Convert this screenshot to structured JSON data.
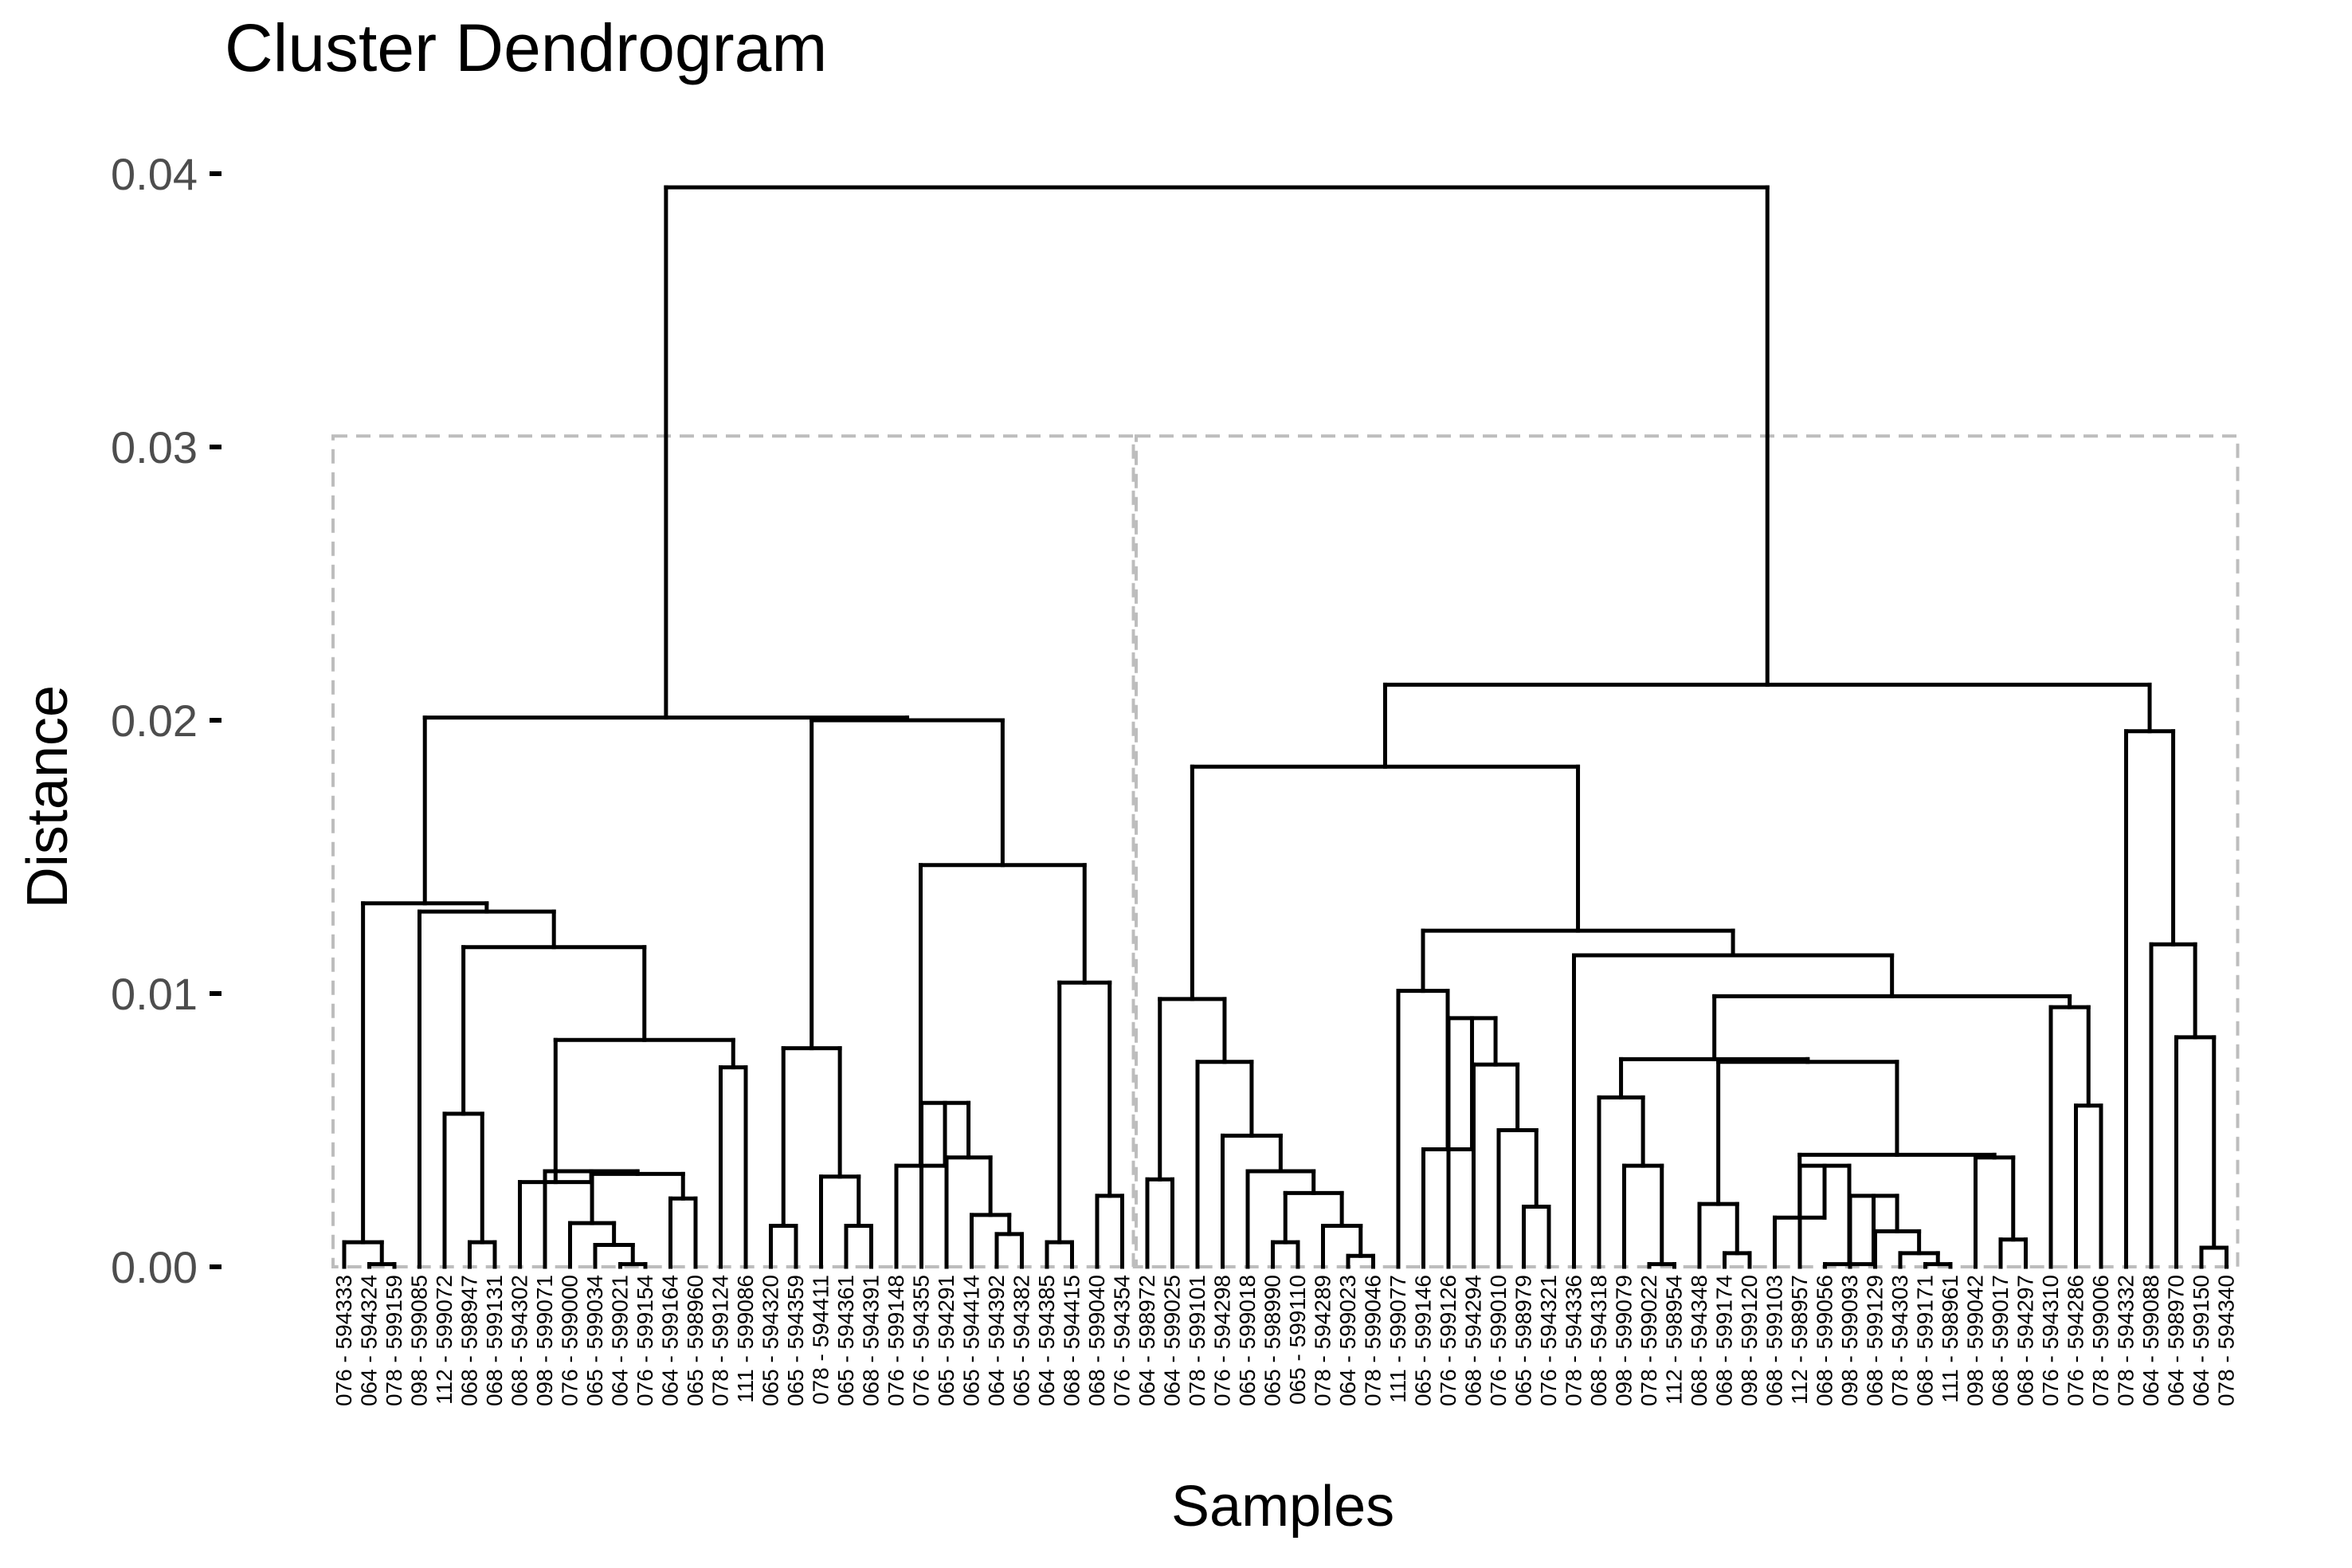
{
  "chart_data": {
    "type": "dendrogram",
    "title": "Cluster Dendrogram",
    "xlabel": "Samples",
    "ylabel": "Distance",
    "ylim": [
      0,
      0.04
    ],
    "y_ticks": [
      "0.00",
      "0.01",
      "0.02",
      "0.03",
      "0.04"
    ],
    "grid": false,
    "cluster_boxes": 2,
    "leaves": [
      "076 - 594333",
      "064 - 594324",
      "078 - 599159",
      "098 - 599085",
      "112 - 599072",
      "068 - 598947",
      "068 - 599131",
      "068 - 594302",
      "098 - 599071",
      "076 - 599000",
      "065 - 599034",
      "064 - 599021",
      "076 - 599154",
      "064 - 599164",
      "065 - 598960",
      "078 - 599124",
      "111 - 599086",
      "065 - 594320",
      "065 - 594359",
      "078 - 594411",
      "065 - 594361",
      "068 - 594391",
      "076 - 599148",
      "076 - 594355",
      "065 - 594291",
      "065 - 594414",
      "064 - 594392",
      "065 - 594382",
      "064 - 594385",
      "068 - 594415",
      "068 - 599040",
      "076 - 594354",
      "064 - 598972",
      "064 - 599025",
      "078 - 599101",
      "076 - 594298",
      "065 - 599018",
      "065 - 598990",
      "065 - 599110",
      "078 - 594289",
      "064 - 599023",
      "078 - 599046",
      "111 - 599077",
      "065 - 599146",
      "076 - 599126",
      "068 - 594294",
      "076 - 599010",
      "065 - 598979",
      "076 - 594321",
      "078 - 594336",
      "068 - 594318",
      "098 - 599079",
      "078 - 599022",
      "112 - 598954",
      "068 - 594348",
      "068 - 599174",
      "098 - 599120",
      "068 - 599103",
      "112 - 598957",
      "068 - 599056",
      "098 - 599093",
      "068 - 599129",
      "078 - 594303",
      "068 - 599171",
      "111 - 598961",
      "098 - 599042",
      "068 - 599017",
      "068 - 594297",
      "076 - 594310",
      "076 - 594286",
      "078 - 599006",
      "078 - 594332",
      "064 - 599088",
      "064 - 598970",
      "064 - 599150",
      "078 - 594340"
    ],
    "merges": [
      {
        "left": 1,
        "right": 2,
        "height": 0.0001
      },
      {
        "left": 0,
        "right": 1,
        "height": 0.0009
      },
      {
        "left": 5,
        "right": 6,
        "height": 0.0009
      },
      {
        "left": 4,
        "right": 5,
        "height": 0.0056
      },
      {
        "left": 11,
        "right": 12,
        "height": 0.0001
      },
      {
        "left": 10,
        "right": 11,
        "height": 0.0008
      },
      {
        "left": 9,
        "right": 10,
        "height": 0.0016
      },
      {
        "left": 13,
        "right": 14,
        "height": 0.0025
      },
      {
        "left": 9,
        "right": 13,
        "height": 0.0034
      },
      {
        "left": 8,
        "right": 9,
        "height": 0.0035
      },
      {
        "left": 7,
        "right": 8,
        "height": 0.0031
      },
      {
        "left": 15,
        "right": 16,
        "height": 0.0073
      },
      {
        "left": 7,
        "right": 15,
        "height": 0.0083
      },
      {
        "left": 4,
        "right": 7,
        "height": 0.0117
      },
      {
        "left": 3,
        "right": 4,
        "height": 0.013
      },
      {
        "left": 0,
        "right": 3,
        "height": 0.0133
      },
      {
        "left": 20,
        "right": 21,
        "height": 0.0015
      },
      {
        "left": 19,
        "right": 20,
        "height": 0.0033
      },
      {
        "left": 17,
        "right": 18,
        "height": 0.0015
      },
      {
        "left": 17,
        "right": 19,
        "height": 0.008
      },
      {
        "left": 26,
        "right": 27,
        "height": 0.0012
      },
      {
        "left": 25,
        "right": 26,
        "height": 0.0019
      },
      {
        "left": 24,
        "right": 25,
        "height": 0.004
      },
      {
        "left": 23,
        "right": 24,
        "height": 0.006
      },
      {
        "left": 22,
        "right": 23,
        "height": 0.0037
      },
      {
        "left": 28,
        "right": 29,
        "height": 0.0009
      },
      {
        "left": 30,
        "right": 31,
        "height": 0.0026
      },
      {
        "left": 28,
        "right": 30,
        "height": 0.0104
      },
      {
        "left": 22,
        "right": 28,
        "height": 0.0147
      },
      {
        "left": 17,
        "right": 22,
        "height": 0.02
      },
      {
        "left": 0,
        "right": 17,
        "height": 0.0201
      },
      {
        "left": 40,
        "right": 41,
        "height": 0.0004
      },
      {
        "left": 39,
        "right": 40,
        "height": 0.0015
      },
      {
        "left": 37,
        "right": 38,
        "height": 0.0009
      },
      {
        "left": 37,
        "right": 39,
        "height": 0.0027
      },
      {
        "left": 36,
        "right": 37,
        "height": 0.0035
      },
      {
        "left": 35,
        "right": 36,
        "height": 0.0048
      },
      {
        "left": 34,
        "right": 35,
        "height": 0.0075
      },
      {
        "left": 32,
        "right": 33,
        "height": 0.0032
      },
      {
        "left": 32,
        "right": 34,
        "height": 0.0098
      },
      {
        "left": 47,
        "right": 48,
        "height": 0.0022
      },
      {
        "left": 46,
        "right": 47,
        "height": 0.005
      },
      {
        "left": 45,
        "right": 46,
        "height": 0.0074
      },
      {
        "left": 44,
        "right": 45,
        "height": 0.0091
      },
      {
        "left": 43,
        "right": 44,
        "height": 0.0043
      },
      {
        "left": 42,
        "right": 43,
        "height": 0.0101
      },
      {
        "left": 52,
        "right": 53,
        "height": 0.0001
      },
      {
        "left": 51,
        "right": 52,
        "height": 0.0037
      },
      {
        "left": 50,
        "right": 51,
        "height": 0.0062
      },
      {
        "left": 55,
        "right": 56,
        "height": 0.0005
      },
      {
        "left": 54,
        "right": 55,
        "height": 0.0023
      },
      {
        "left": 63,
        "right": 64,
        "height": 0.0001
      },
      {
        "left": 62,
        "right": 63,
        "height": 0.0005
      },
      {
        "left": 61,
        "right": 62,
        "height": 0.0013
      },
      {
        "left": 60,
        "right": 61,
        "height": 0.0026
      },
      {
        "left": 59,
        "right": 60,
        "height": 0.0001
      },
      {
        "left": 58,
        "right": 59,
        "height": 0.0037
      },
      {
        "left": 57,
        "right": 58,
        "height": 0.0018
      },
      {
        "left": 66,
        "right": 67,
        "height": 0.001
      },
      {
        "left": 65,
        "right": 66,
        "height": 0.004
      },
      {
        "left": 57,
        "right": 65,
        "height": 0.0041
      },
      {
        "left": 54,
        "right": 57,
        "height": 0.0075
      },
      {
        "left": 50,
        "right": 54,
        "height": 0.0076
      },
      {
        "left": 69,
        "right": 70,
        "height": 0.0059
      },
      {
        "left": 68,
        "right": 69,
        "height": 0.0095
      },
      {
        "left": 50,
        "right": 68,
        "height": 0.0099
      },
      {
        "left": 49,
        "right": 50,
        "height": 0.0114
      },
      {
        "left": 42,
        "right": 49,
        "height": 0.0123
      },
      {
        "left": 32,
        "right": 42,
        "height": 0.0183
      },
      {
        "left": 74,
        "right": 75,
        "height": 0.0007
      },
      {
        "left": 73,
        "right": 74,
        "height": 0.0084
      },
      {
        "left": 72,
        "right": 73,
        "height": 0.0118
      },
      {
        "left": 71,
        "right": 72,
        "height": 0.0196
      },
      {
        "left": 32,
        "right": 71,
        "height": 0.0213
      },
      {
        "left": 0,
        "right": 32,
        "height": 0.0395
      }
    ]
  },
  "colors": {
    "background": "#ffffff",
    "branch": "#000000",
    "cluster_box": "#bdbdbd",
    "tick_label": "#4d4d4d"
  }
}
